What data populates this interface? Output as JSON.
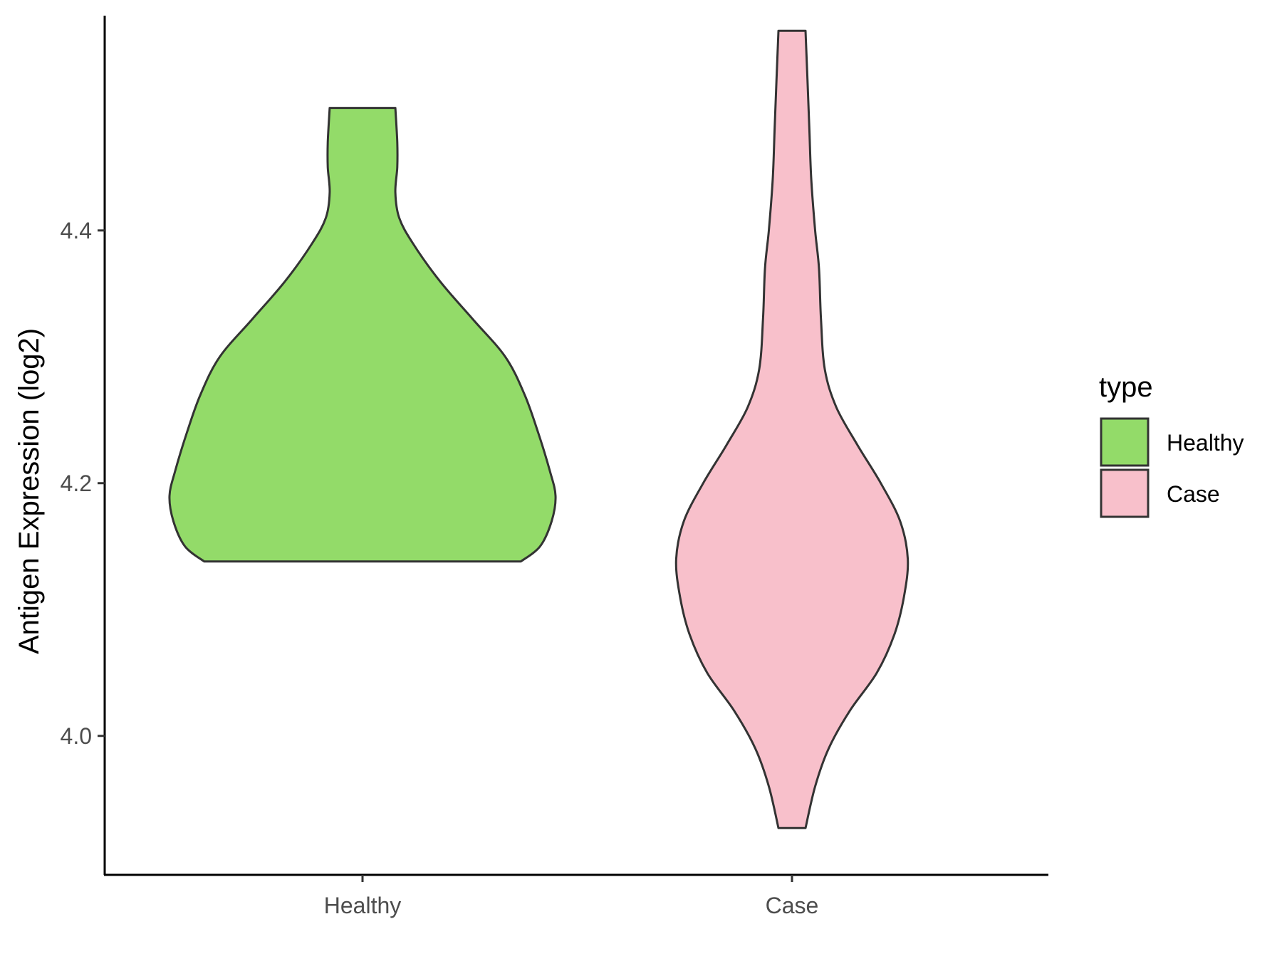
{
  "chart_data": {
    "type": "violin",
    "title": "",
    "xlabel": "",
    "ylabel": "Antigen Expression (log2)",
    "ylim": [
      3.89,
      4.57
    ],
    "y_ticks": [
      4.0,
      4.2,
      4.4
    ],
    "y_tick_labels": [
      "4.0",
      "4.2",
      "4.4"
    ],
    "categories": [
      "Healthy",
      "Case"
    ],
    "legend": {
      "title": "type",
      "placement": "right",
      "entries": [
        "Healthy",
        "Case"
      ]
    },
    "series": [
      {
        "name": "Healthy",
        "color": "#93DB69",
        "density_profile": [
          {
            "y": 4.138,
            "w": 0.82
          },
          {
            "y": 4.15,
            "w": 0.92
          },
          {
            "y": 4.17,
            "w": 0.98
          },
          {
            "y": 4.19,
            "w": 1.0
          },
          {
            "y": 4.21,
            "w": 0.97
          },
          {
            "y": 4.24,
            "w": 0.91
          },
          {
            "y": 4.27,
            "w": 0.84
          },
          {
            "y": 4.3,
            "w": 0.74
          },
          {
            "y": 4.33,
            "w": 0.57
          },
          {
            "y": 4.36,
            "w": 0.4
          },
          {
            "y": 4.39,
            "w": 0.26
          },
          {
            "y": 4.41,
            "w": 0.19
          },
          {
            "y": 4.43,
            "w": 0.17
          },
          {
            "y": 4.45,
            "w": 0.18
          },
          {
            "y": 4.47,
            "w": 0.18
          },
          {
            "y": 4.497,
            "w": 0.17
          }
        ]
      },
      {
        "name": "Case",
        "color": "#F8C0CB",
        "density_profile": [
          {
            "y": 3.927,
            "w": 0.07
          },
          {
            "y": 3.96,
            "w": 0.12
          },
          {
            "y": 3.99,
            "w": 0.19
          },
          {
            "y": 4.02,
            "w": 0.3
          },
          {
            "y": 4.05,
            "w": 0.44
          },
          {
            "y": 4.08,
            "w": 0.53
          },
          {
            "y": 4.11,
            "w": 0.58
          },
          {
            "y": 4.14,
            "w": 0.6
          },
          {
            "y": 4.17,
            "w": 0.56
          },
          {
            "y": 4.2,
            "w": 0.46
          },
          {
            "y": 4.23,
            "w": 0.34
          },
          {
            "y": 4.26,
            "w": 0.23
          },
          {
            "y": 4.29,
            "w": 0.17
          },
          {
            "y": 4.33,
            "w": 0.15
          },
          {
            "y": 4.37,
            "w": 0.14
          },
          {
            "y": 4.4,
            "w": 0.12
          },
          {
            "y": 4.44,
            "w": 0.1
          },
          {
            "y": 4.48,
            "w": 0.09
          },
          {
            "y": 4.52,
            "w": 0.08
          },
          {
            "y": 4.558,
            "w": 0.07
          }
        ]
      }
    ]
  }
}
